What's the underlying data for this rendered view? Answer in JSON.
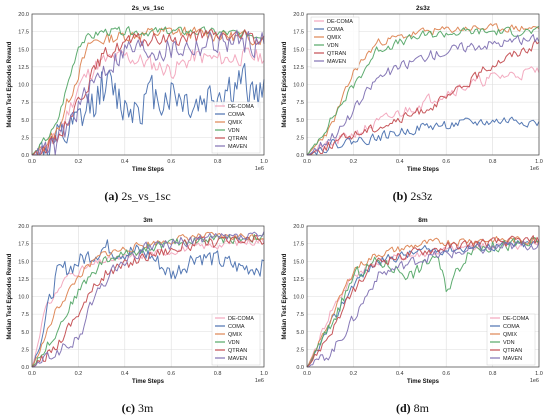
{
  "chart_data": [
    {
      "type": "line",
      "title": "2s_vs_1sc",
      "caption_letter": "(a)",
      "caption_text": "2s_vs_1sc",
      "xlabel": "Time Steps",
      "ylabel": "Median Test Episodes Reward",
      "x_multiplier": "1e6",
      "xlim": [
        0,
        1.0
      ],
      "ylim": [
        0,
        20
      ],
      "xticks": [
        "0.0",
        "0.2",
        "0.4",
        "0.6",
        "0.8",
        "1.0"
      ],
      "yticks": [
        "0.0",
        "2.5",
        "5.0",
        "7.5",
        "10.0",
        "12.5",
        "15.0",
        "17.5",
        "20.0"
      ],
      "grid": true,
      "legend_loc": "bottom-right",
      "series": [
        {
          "name": "DE-COMA",
          "color": "#f2a7bd",
          "keys": [
            [
              0,
              0
            ],
            [
              0.1,
              2
            ],
            [
              0.2,
              10
            ],
            [
              0.28,
              13
            ],
            [
              0.4,
              14
            ],
            [
              0.5,
              13
            ],
            [
              0.6,
              12
            ],
            [
              0.7,
              14
            ],
            [
              0.8,
              13.5
            ],
            [
              0.9,
              14
            ],
            [
              1.0,
              14
            ]
          ],
          "noise": 1.8,
          "seed": 11
        },
        {
          "name": "COMA",
          "color": "#4c72b0",
          "keys": [
            [
              0,
              0
            ],
            [
              0.1,
              1
            ],
            [
              0.2,
              4
            ],
            [
              0.3,
              10
            ],
            [
              0.4,
              7
            ],
            [
              0.5,
              8
            ],
            [
              0.6,
              9
            ],
            [
              0.7,
              7
            ],
            [
              0.8,
              9
            ],
            [
              0.9,
              10
            ],
            [
              1.0,
              8
            ]
          ],
          "noise": 4.5,
          "seed": 12
        },
        {
          "name": "QMIX",
          "color": "#dd8452",
          "keys": [
            [
              0,
              0
            ],
            [
              0.1,
              3
            ],
            [
              0.2,
              12
            ],
            [
              0.25,
              16
            ],
            [
              0.4,
              17
            ],
            [
              0.6,
              17.5
            ],
            [
              0.8,
              17
            ],
            [
              1.0,
              16.5
            ]
          ],
          "noise": 1.3,
          "seed": 13
        },
        {
          "name": "VDN",
          "color": "#55a868",
          "keys": [
            [
              0,
              0
            ],
            [
              0.1,
              4
            ],
            [
              0.15,
              10
            ],
            [
              0.2,
              16
            ],
            [
              0.3,
              17.5
            ],
            [
              0.5,
              17.5
            ],
            [
              0.7,
              17.5
            ],
            [
              1.0,
              17
            ]
          ],
          "noise": 0.9,
          "seed": 14
        },
        {
          "name": "QTRAN",
          "color": "#c44e52",
          "keys": [
            [
              0,
              0
            ],
            [
              0.1,
              2
            ],
            [
              0.2,
              8
            ],
            [
              0.3,
              14
            ],
            [
              0.4,
              16
            ],
            [
              0.6,
              16.5
            ],
            [
              0.8,
              17
            ],
            [
              1.0,
              16.5
            ]
          ],
          "noise": 1.5,
          "seed": 15
        },
        {
          "name": "MAVEN",
          "color": "#8172b3",
          "keys": [
            [
              0,
              0
            ],
            [
              0.1,
              1
            ],
            [
              0.2,
              7
            ],
            [
              0.3,
              12
            ],
            [
              0.4,
              15
            ],
            [
              0.6,
              15
            ],
            [
              0.8,
              16
            ],
            [
              1.0,
              16
            ]
          ],
          "noise": 2.6,
          "seed": 16
        }
      ]
    },
    {
      "type": "line",
      "title": "2s3z",
      "caption_letter": "(b)",
      "caption_text": "2s3z",
      "xlabel": "Time Steps",
      "ylabel": "Median Test Episodes Reward",
      "x_multiplier": "1e6",
      "xlim": [
        0,
        1.0
      ],
      "ylim": [
        0,
        20
      ],
      "xticks": [
        "0.0",
        "0.2",
        "0.4",
        "0.6",
        "0.8",
        "1.0"
      ],
      "yticks": [
        "0.0",
        "2.5",
        "5.0",
        "7.5",
        "10.0",
        "12.5",
        "15.0",
        "17.5",
        "20.0"
      ],
      "grid": true,
      "legend_loc": "top-left",
      "series": [
        {
          "name": "DE-COMA",
          "color": "#f2a7bd",
          "keys": [
            [
              0,
              0
            ],
            [
              0.2,
              3
            ],
            [
              0.4,
              6
            ],
            [
              0.6,
              9
            ],
            [
              0.8,
              11
            ],
            [
              1.0,
              12
            ]
          ],
          "noise": 1.2,
          "seed": 21
        },
        {
          "name": "COMA",
          "color": "#4c72b0",
          "keys": [
            [
              0,
              0
            ],
            [
              0.1,
              1.5
            ],
            [
              0.3,
              2.5
            ],
            [
              0.5,
              4
            ],
            [
              0.7,
              4.5
            ],
            [
              0.9,
              5
            ],
            [
              1.0,
              4.5
            ]
          ],
          "noise": 1.0,
          "seed": 22
        },
        {
          "name": "QMIX",
          "color": "#dd8452",
          "keys": [
            [
              0,
              0
            ],
            [
              0.1,
              4
            ],
            [
              0.2,
              12
            ],
            [
              0.3,
              16
            ],
            [
              0.5,
              17.5
            ],
            [
              0.7,
              18
            ],
            [
              1.0,
              18
            ]
          ],
          "noise": 0.8,
          "seed": 23
        },
        {
          "name": "VDN",
          "color": "#55a868",
          "keys": [
            [
              0,
              0
            ],
            [
              0.1,
              5
            ],
            [
              0.2,
              10
            ],
            [
              0.3,
              15
            ],
            [
              0.5,
              17
            ],
            [
              0.7,
              17.5
            ],
            [
              1.0,
              17.5
            ]
          ],
          "noise": 0.9,
          "seed": 24
        },
        {
          "name": "QTRAN",
          "color": "#c44e52",
          "keys": [
            [
              0,
              0
            ],
            [
              0.2,
              3
            ],
            [
              0.4,
              5
            ],
            [
              0.6,
              8
            ],
            [
              0.8,
              13
            ],
            [
              1.0,
              16
            ]
          ],
          "noise": 1.0,
          "seed": 25
        },
        {
          "name": "MAVEN",
          "color": "#8172b3",
          "keys": [
            [
              0,
              0
            ],
            [
              0.15,
              4
            ],
            [
              0.3,
              11
            ],
            [
              0.5,
              14
            ],
            [
              0.7,
              15.5
            ],
            [
              1.0,
              16.5
            ]
          ],
          "noise": 1.1,
          "seed": 26
        }
      ]
    },
    {
      "type": "line",
      "title": "3m",
      "caption_letter": "(c)",
      "caption_text": "3m",
      "xlabel": "Time Steps",
      "ylabel": "Median Test Episodes Reward",
      "x_multiplier": "1e6",
      "xlim": [
        0,
        1.0
      ],
      "ylim": [
        0,
        20
      ],
      "xticks": [
        "0.0",
        "0.2",
        "0.4",
        "0.6",
        "0.8",
        "1.0"
      ],
      "yticks": [
        "0.0",
        "2.5",
        "5.0",
        "7.5",
        "10.0",
        "12.5",
        "15.0",
        "17.5",
        "20.0"
      ],
      "grid": true,
      "legend_loc": "bottom-right",
      "series": [
        {
          "name": "DE-COMA",
          "color": "#f2a7bd",
          "keys": [
            [
              0,
              0
            ],
            [
              0.05,
              8
            ],
            [
              0.15,
              13
            ],
            [
              0.3,
              15
            ],
            [
              0.5,
              16
            ],
            [
              0.7,
              17
            ],
            [
              1.0,
              18
            ]
          ],
          "noise": 0.8,
          "seed": 31
        },
        {
          "name": "COMA",
          "color": "#4c72b0",
          "keys": [
            [
              0,
              0
            ],
            [
              0.05,
              6
            ],
            [
              0.1,
              13
            ],
            [
              0.2,
              15
            ],
            [
              0.3,
              17
            ],
            [
              0.5,
              16
            ],
            [
              0.6,
              13
            ],
            [
              0.7,
              16
            ],
            [
              0.8,
              15
            ],
            [
              0.9,
              14
            ],
            [
              1.0,
              14.5
            ]
          ],
          "noise": 2.0,
          "seed": 32
        },
        {
          "name": "QMIX",
          "color": "#dd8452",
          "keys": [
            [
              0,
              0
            ],
            [
              0.1,
              8
            ],
            [
              0.2,
              13
            ],
            [
              0.3,
              16
            ],
            [
              0.5,
              17.5
            ],
            [
              0.7,
              18.5
            ],
            [
              1.0,
              18.5
            ]
          ],
          "noise": 0.8,
          "seed": 33
        },
        {
          "name": "VDN",
          "color": "#55a868",
          "keys": [
            [
              0,
              0
            ],
            [
              0.1,
              5
            ],
            [
              0.2,
              11
            ],
            [
              0.3,
              15
            ],
            [
              0.5,
              17
            ],
            [
              0.7,
              18
            ],
            [
              1.0,
              18.5
            ]
          ],
          "noise": 1.0,
          "seed": 34
        },
        {
          "name": "QTRAN",
          "color": "#c44e52",
          "keys": [
            [
              0,
              0
            ],
            [
              0.1,
              3
            ],
            [
              0.2,
              8
            ],
            [
              0.3,
              13
            ],
            [
              0.5,
              16
            ],
            [
              0.7,
              17.5
            ],
            [
              1.0,
              18
            ]
          ],
          "noise": 1.2,
          "seed": 35
        },
        {
          "name": "MAVEN",
          "color": "#8172b3",
          "keys": [
            [
              0,
              0
            ],
            [
              0.1,
              2
            ],
            [
              0.2,
              4
            ],
            [
              0.25,
              9
            ],
            [
              0.35,
              14
            ],
            [
              0.5,
              17
            ],
            [
              0.7,
              18
            ],
            [
              1.0,
              18.5
            ]
          ],
          "noise": 1.2,
          "seed": 36
        }
      ]
    },
    {
      "type": "line",
      "title": "8m",
      "caption_letter": "(d)",
      "caption_text": "8m",
      "xlabel": "Time Steps",
      "ylabel": "Median Test Episodes Reward",
      "x_multiplier": "1e6",
      "xlim": [
        0,
        1.0
      ],
      "ylim": [
        0,
        20
      ],
      "xticks": [
        "0.0",
        "0.2",
        "0.4",
        "0.6",
        "0.8",
        "1.0"
      ],
      "yticks": [
        "0.0",
        "2.5",
        "5.0",
        "7.5",
        "10.0",
        "12.5",
        "15.0",
        "17.5",
        "20.0"
      ],
      "grid": true,
      "legend_loc": "bottom-right",
      "series": [
        {
          "name": "DE-COMA",
          "color": "#f2a7bd",
          "keys": [
            [
              0,
              0
            ],
            [
              0.1,
              8
            ],
            [
              0.2,
              13
            ],
            [
              0.3,
              15
            ],
            [
              0.5,
              16
            ],
            [
              0.7,
              17
            ],
            [
              1.0,
              17.5
            ]
          ],
          "noise": 0.9,
          "seed": 41
        },
        {
          "name": "COMA",
          "color": "#4c72b0",
          "keys": [
            [
              0,
              0
            ],
            [
              0.1,
              6
            ],
            [
              0.2,
              12
            ],
            [
              0.3,
              15
            ],
            [
              0.5,
              16.5
            ],
            [
              0.7,
              17
            ],
            [
              1.0,
              17.5
            ]
          ],
          "noise": 1.0,
          "seed": 42
        },
        {
          "name": "QMIX",
          "color": "#dd8452",
          "keys": [
            [
              0,
              0
            ],
            [
              0.1,
              7
            ],
            [
              0.2,
              14
            ],
            [
              0.3,
              16
            ],
            [
              0.5,
              17.5
            ],
            [
              0.7,
              18
            ],
            [
              1.0,
              18
            ]
          ],
          "noise": 0.8,
          "seed": 43
        },
        {
          "name": "VDN",
          "color": "#55a868",
          "keys": [
            [
              0,
              0
            ],
            [
              0.1,
              6
            ],
            [
              0.2,
              13
            ],
            [
              0.3,
              15
            ],
            [
              0.45,
              13
            ],
            [
              0.55,
              16
            ],
            [
              0.6,
              11
            ],
            [
              0.7,
              17
            ],
            [
              1.0,
              17.5
            ]
          ],
          "noise": 1.3,
          "seed": 44
        },
        {
          "name": "QTRAN",
          "color": "#c44e52",
          "keys": [
            [
              0,
              0
            ],
            [
              0.1,
              5
            ],
            [
              0.2,
              11
            ],
            [
              0.3,
              15
            ],
            [
              0.5,
              16.5
            ],
            [
              0.7,
              17.5
            ],
            [
              1.0,
              18
            ]
          ],
          "noise": 1.0,
          "seed": 45
        },
        {
          "name": "MAVEN",
          "color": "#8172b3",
          "keys": [
            [
              0,
              0
            ],
            [
              0.1,
              2
            ],
            [
              0.2,
              7
            ],
            [
              0.3,
              13
            ],
            [
              0.5,
              15.5
            ],
            [
              0.7,
              16.5
            ],
            [
              1.0,
              17.5
            ]
          ],
          "noise": 1.1,
          "seed": 46
        }
      ]
    }
  ]
}
